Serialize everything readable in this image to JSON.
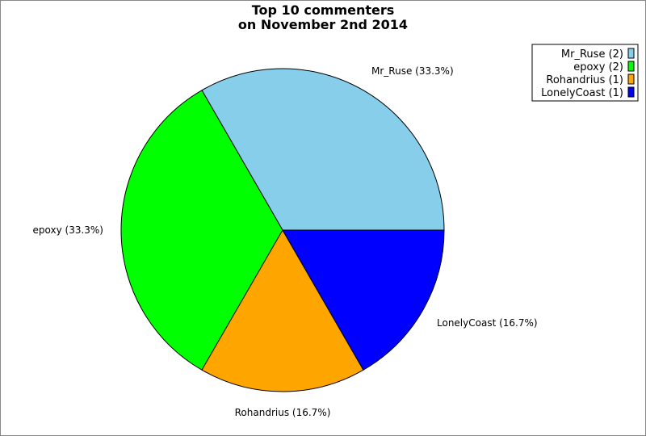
{
  "chart_data": {
    "type": "pie",
    "title": "Top 10 commenters",
    "subtitle": "on November 2nd 2014",
    "legend_position": "top-right",
    "slices": [
      {
        "name": "Mr_Ruse",
        "value": 2,
        "percent": "33.3%",
        "legend": "Mr_Ruse (2)",
        "label": "Mr_Ruse (33.3%)",
        "color": "#87ceeb"
      },
      {
        "name": "epoxy",
        "value": 2,
        "percent": "33.3%",
        "legend": "epoxy (2)",
        "label": "epoxy (33.3%)",
        "color": "#00ff00"
      },
      {
        "name": "Rohandrius",
        "value": 1,
        "percent": "16.7%",
        "legend": "Rohandrius (1)",
        "label": "Rohandrius (16.7%)",
        "color": "#ffa500"
      },
      {
        "name": "LonelyCoast",
        "value": 1,
        "percent": "16.7%",
        "legend": "LonelyCoast (1)",
        "label": "LonelyCoast (16.7%)",
        "color": "#0000ff"
      }
    ]
  }
}
